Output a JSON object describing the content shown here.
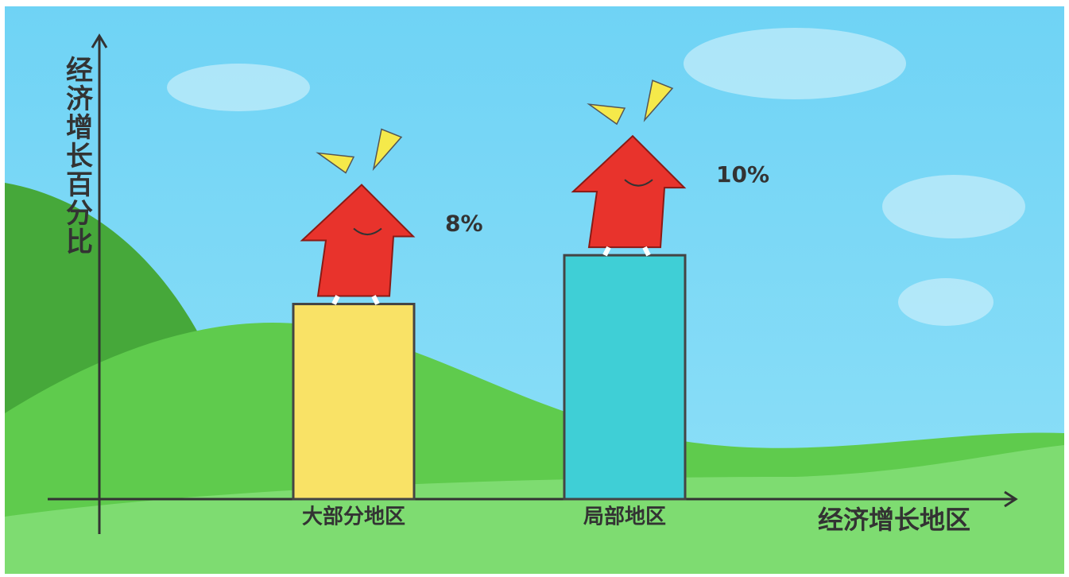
{
  "chart_data": {
    "type": "bar",
    "y_label": "经济增长百分比",
    "x_label": "经济增长地区",
    "categories": [
      "大部分地区",
      "局部地区"
    ],
    "values": [
      8,
      10
    ],
    "value_labels": [
      "8%",
      "10%"
    ],
    "colors": [
      "#f9e266",
      "#3fcfd6"
    ],
    "ylim": [
      0,
      19
    ]
  }
}
